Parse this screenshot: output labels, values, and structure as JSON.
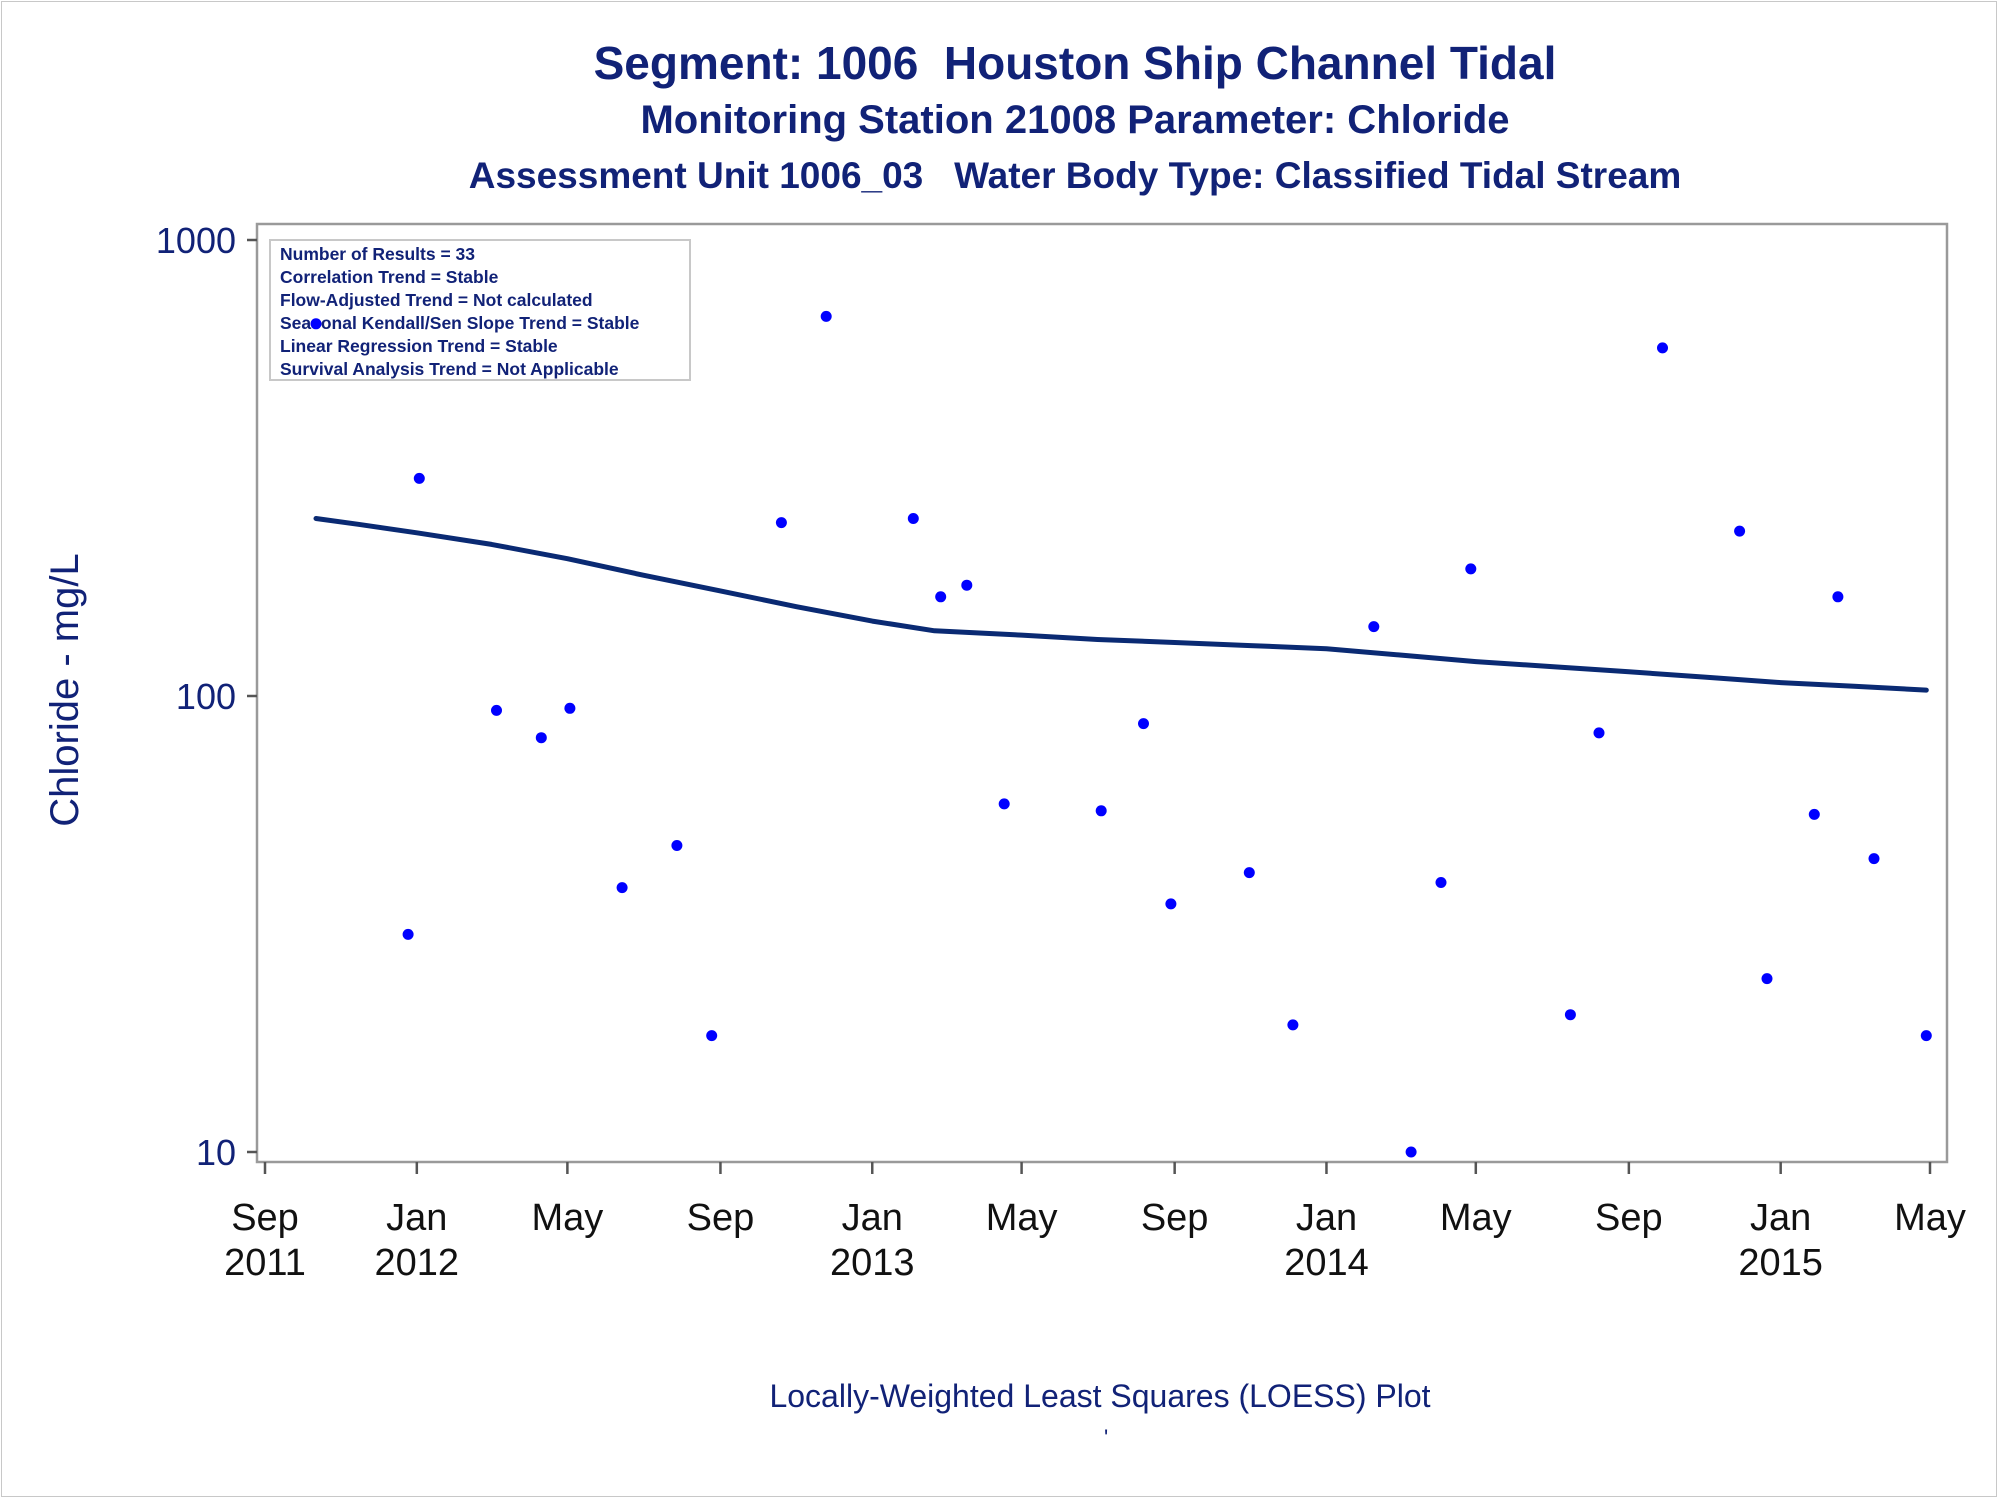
{
  "chart_data": {
    "type": "scatter",
    "title": "Segment: 1006  Houston Ship Channel Tidal",
    "subtitle": "Monitoring Station 21008 Parameter: Chloride",
    "subtitle2": "Assessment Unit 1006_03   Water Body Type: Classified Tidal Stream",
    "xlabel": "",
    "ylabel": "Chloride - mg/L",
    "yscale": "log",
    "ylim": [
      10,
      1000
    ],
    "xlim": [
      "2011-09-01",
      "2015-05-01"
    ],
    "y_ticks": [
      {
        "value": 1000,
        "label": "1000"
      },
      {
        "value": 100,
        "label": "100"
      },
      {
        "value": 10,
        "label": "10"
      }
    ],
    "x_ticks": [
      {
        "date": "2011-09-01",
        "month": "Sep",
        "year": "2011"
      },
      {
        "date": "2012-01-01",
        "month": "Jan",
        "year": "2012"
      },
      {
        "date": "2012-05-01",
        "month": "May",
        "year": ""
      },
      {
        "date": "2012-09-01",
        "month": "Sep",
        "year": ""
      },
      {
        "date": "2013-01-01",
        "month": "Jan",
        "year": "2013"
      },
      {
        "date": "2013-05-01",
        "month": "May",
        "year": ""
      },
      {
        "date": "2013-09-01",
        "month": "Sep",
        "year": ""
      },
      {
        "date": "2014-01-01",
        "month": "Jan",
        "year": "2014"
      },
      {
        "date": "2014-05-01",
        "month": "May",
        "year": ""
      },
      {
        "date": "2014-09-01",
        "month": "Sep",
        "year": ""
      },
      {
        "date": "2015-01-01",
        "month": "Jan",
        "year": "2015"
      },
      {
        "date": "2015-05-01",
        "month": "May",
        "year": ""
      }
    ],
    "grid": false,
    "stats_box": {
      "placement": "top-left",
      "lines": [
        "Number of Results = 33",
        "Correlation Trend = Stable",
        "Flow-Adjusted Trend = Not calculated",
        "Seasonal Kendall/Sen Slope Trend = Stable",
        "Linear Regression Trend = Stable",
        "Survival Analysis Trend = Not Applicable"
      ]
    },
    "series": [
      {
        "type": "scatter",
        "color": "#0000ff",
        "points": [
          {
            "x": "2011-10-12",
            "y": 655
          },
          {
            "x": "2011-12-25",
            "y": 30
          },
          {
            "x": "2012-01-03",
            "y": 300
          },
          {
            "x": "2012-03-05",
            "y": 93
          },
          {
            "x": "2012-04-10",
            "y": 81
          },
          {
            "x": "2012-05-03",
            "y": 94
          },
          {
            "x": "2012-06-14",
            "y": 38
          },
          {
            "x": "2012-07-28",
            "y": 47
          },
          {
            "x": "2012-08-25",
            "y": 18
          },
          {
            "x": "2012-10-20",
            "y": 240
          },
          {
            "x": "2012-11-25",
            "y": 680
          },
          {
            "x": "2013-02-03",
            "y": 245
          },
          {
            "x": "2013-02-25",
            "y": 165
          },
          {
            "x": "2013-03-18",
            "y": 175
          },
          {
            "x": "2013-04-17",
            "y": 58
          },
          {
            "x": "2013-07-04",
            "y": 56
          },
          {
            "x": "2013-08-07",
            "y": 87
          },
          {
            "x": "2013-08-29",
            "y": 35
          },
          {
            "x": "2013-10-31",
            "y": 41
          },
          {
            "x": "2013-12-05",
            "y": 19
          },
          {
            "x": "2014-02-08",
            "y": 142
          },
          {
            "x": "2014-03-10",
            "y": 10
          },
          {
            "x": "2014-04-03",
            "y": 39
          },
          {
            "x": "2014-04-27",
            "y": 190
          },
          {
            "x": "2014-07-16",
            "y": 20
          },
          {
            "x": "2014-08-08",
            "y": 83
          },
          {
            "x": "2014-09-28",
            "y": 580
          },
          {
            "x": "2014-11-29",
            "y": 230
          },
          {
            "x": "2014-12-21",
            "y": 24
          },
          {
            "x": "2015-01-28",
            "y": 55
          },
          {
            "x": "2015-02-16",
            "y": 165
          },
          {
            "x": "2015-03-17",
            "y": 44
          },
          {
            "x": "2015-04-28",
            "y": 18
          }
        ]
      },
      {
        "type": "line",
        "color": "#0a2a73",
        "points": [
          {
            "x": "2011-10-12",
            "y": 245
          },
          {
            "x": "2011-11-15",
            "y": 238
          },
          {
            "x": "2012-01-01",
            "y": 228
          },
          {
            "x": "2012-03-01",
            "y": 215
          },
          {
            "x": "2012-05-01",
            "y": 200
          },
          {
            "x": "2012-07-01",
            "y": 184
          },
          {
            "x": "2012-09-01",
            "y": 170
          },
          {
            "x": "2012-11-01",
            "y": 157
          },
          {
            "x": "2013-01-01",
            "y": 146
          },
          {
            "x": "2013-02-20",
            "y": 139
          },
          {
            "x": "2013-05-01",
            "y": 136
          },
          {
            "x": "2013-07-01",
            "y": 133
          },
          {
            "x": "2013-09-01",
            "y": 131
          },
          {
            "x": "2013-11-01",
            "y": 129
          },
          {
            "x": "2014-01-01",
            "y": 127
          },
          {
            "x": "2014-03-01",
            "y": 123
          },
          {
            "x": "2014-05-01",
            "y": 119
          },
          {
            "x": "2014-07-01",
            "y": 116
          },
          {
            "x": "2014-09-01",
            "y": 113
          },
          {
            "x": "2014-11-01",
            "y": 110
          },
          {
            "x": "2015-01-01",
            "y": 107
          },
          {
            "x": "2015-03-01",
            "y": 105
          },
          {
            "x": "2015-04-28",
            "y": 103
          }
        ]
      }
    ]
  },
  "footer": {
    "caption": "Locally-Weighted Least Squares (LOESS) Plot",
    "tick_mark": "'"
  }
}
